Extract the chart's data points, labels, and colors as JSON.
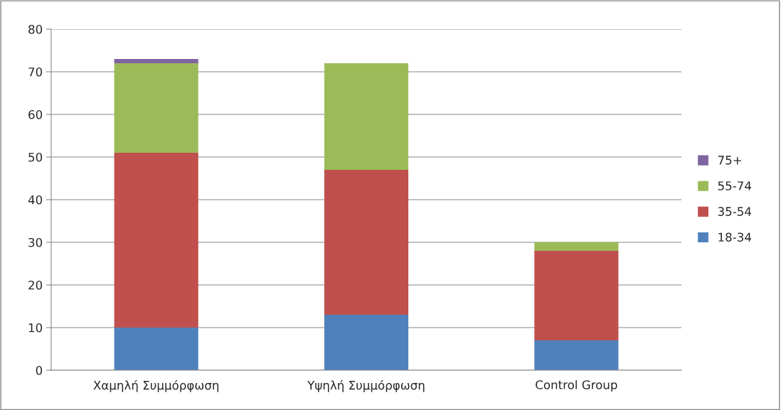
{
  "chart_data": {
    "type": "bar",
    "stacked": true,
    "categories": [
      "Χαμηλή Συμμόρφωση",
      "Υψηλή Συμμόρφωση",
      "Control Group"
    ],
    "series": [
      {
        "name": "18-34",
        "color": "#4f81bd",
        "values": [
          10,
          13,
          7
        ]
      },
      {
        "name": "35-54",
        "color": "#c0504d",
        "values": [
          41,
          34,
          21
        ]
      },
      {
        "name": "55-74",
        "color": "#9bbb59",
        "values": [
          21,
          25,
          2
        ]
      },
      {
        "name": "75+",
        "color": "#8064a2",
        "values": [
          1,
          null,
          null
        ]
      }
    ],
    "ylim": [
      0,
      80
    ],
    "yticks": [
      0,
      10,
      20,
      30,
      40,
      50,
      60,
      70,
      80
    ],
    "grid": "y",
    "legend": "right"
  }
}
